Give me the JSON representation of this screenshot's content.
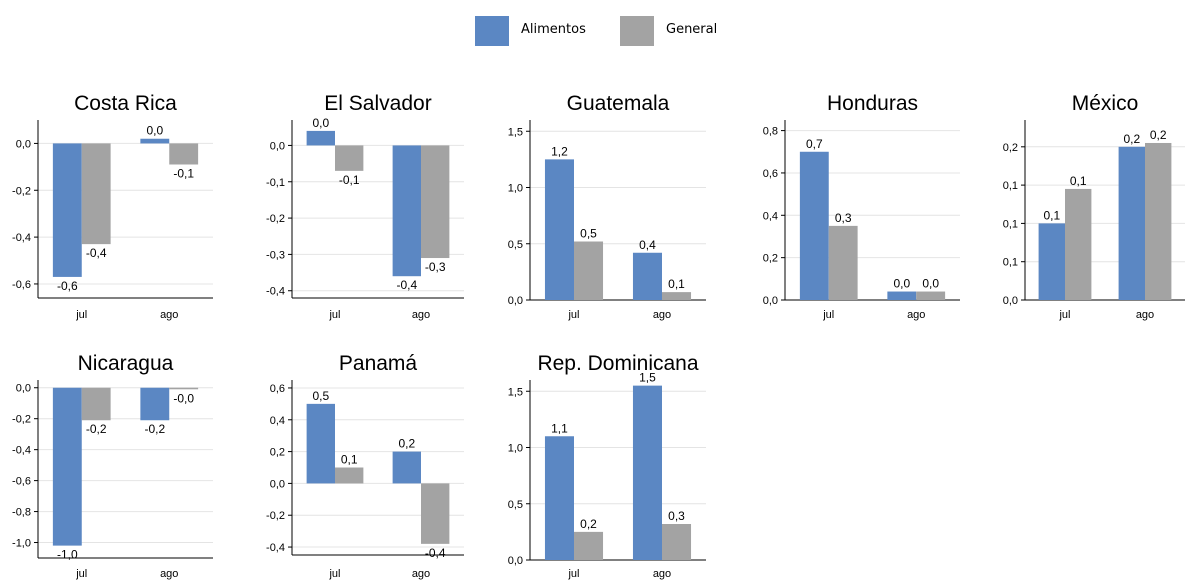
{
  "legend": {
    "items": [
      {
        "label": "Alimentos",
        "color": "#5b87c3"
      },
      {
        "label": "General",
        "color": "#a3a3a3"
      }
    ]
  },
  "chart_data": [
    {
      "type": "bar",
      "title": "Costa Rica",
      "categories": [
        "jul",
        "ago"
      ],
      "series": [
        {
          "name": "Alimentos",
          "values": [
            -0.57,
            0.02
          ],
          "labels": [
            "-0,6",
            "0,0"
          ]
        },
        {
          "name": "General",
          "values": [
            -0.43,
            -0.09
          ],
          "labels": [
            "-0,4",
            "-0,1"
          ]
        }
      ],
      "ylim": [
        -0.66,
        0.1
      ],
      "yticks": [
        0,
        -0.2,
        -0.4,
        -0.6
      ],
      "ytick_labels": [
        "0,0",
        "-0,2",
        "-0,4",
        "-0,6"
      ],
      "grid": true
    },
    {
      "type": "bar",
      "title": "El Salvador",
      "categories": [
        "jul",
        "ago"
      ],
      "series": [
        {
          "name": "Alimentos",
          "values": [
            0.04,
            -0.36
          ],
          "labels": [
            "0,0",
            "-0,4"
          ]
        },
        {
          "name": "General",
          "values": [
            -0.07,
            -0.31
          ],
          "labels": [
            "-0,1",
            "-0,3"
          ]
        }
      ],
      "ylim": [
        -0.42,
        0.07
      ],
      "yticks": [
        0,
        -0.1,
        -0.2,
        -0.3,
        -0.4
      ],
      "ytick_labels": [
        "0,0",
        "-0,1",
        "-0,2",
        "-0,3",
        "-0,4"
      ],
      "grid": true
    },
    {
      "type": "bar",
      "title": "Guatemala",
      "categories": [
        "jul",
        "ago"
      ],
      "series": [
        {
          "name": "Alimentos",
          "values": [
            1.25,
            0.42
          ],
          "labels": [
            "1,2",
            "0,4"
          ]
        },
        {
          "name": "General",
          "values": [
            0.52,
            0.07
          ],
          "labels": [
            "0,5",
            "0,1"
          ]
        }
      ],
      "ylim": [
        0,
        1.6
      ],
      "yticks": [
        0,
        0.5,
        1.0,
        1.5
      ],
      "ytick_labels": [
        "0,0",
        "0,5",
        "1,0",
        "1,5"
      ],
      "grid": true
    },
    {
      "type": "bar",
      "title": "Honduras",
      "categories": [
        "jul",
        "ago"
      ],
      "series": [
        {
          "name": "Alimentos",
          "values": [
            0.7,
            0.04
          ],
          "labels": [
            "0,7",
            "0,0"
          ]
        },
        {
          "name": "General",
          "values": [
            0.35,
            0.04
          ],
          "labels": [
            "0,3",
            "0,0"
          ]
        }
      ],
      "ylim": [
        0,
        0.85
      ],
      "yticks": [
        0,
        0.2,
        0.4,
        0.6,
        0.8
      ],
      "ytick_labels": [
        "0,0",
        "0,2",
        "0,4",
        "0,6",
        "0,8"
      ],
      "grid": true
    },
    {
      "type": "bar",
      "title": "México",
      "categories": [
        "jul",
        "ago"
      ],
      "series": [
        {
          "name": "Alimentos",
          "values": [
            0.1,
            0.2
          ],
          "labels": [
            "0,1",
            "0,2"
          ]
        },
        {
          "name": "General",
          "values": [
            0.145,
            0.205
          ],
          "labels": [
            "0,1",
            "0,2"
          ]
        }
      ],
      "ylim": [
        0,
        0.235
      ],
      "yticks": [
        0,
        0.05,
        0.1,
        0.15,
        0.2
      ],
      "ytick_labels": [
        "0,0",
        "0,1",
        "0,1",
        "0,1",
        "0,2"
      ],
      "grid": true
    },
    {
      "type": "bar",
      "title": "Nicaragua",
      "categories": [
        "jul",
        "ago"
      ],
      "series": [
        {
          "name": "Alimentos",
          "values": [
            -1.02,
            -0.21
          ],
          "labels": [
            "-1,0",
            "-0,2"
          ]
        },
        {
          "name": "General",
          "values": [
            -0.21,
            -0.01
          ],
          "labels": [
            "-0,2",
            "-0,0"
          ]
        }
      ],
      "ylim": [
        -1.1,
        0.05
      ],
      "yticks": [
        0,
        -0.2,
        -0.4,
        -0.6,
        -0.8,
        -1.0
      ],
      "ytick_labels": [
        "0,0",
        "-0,2",
        "-0,4",
        "-0,6",
        "-0,8",
        "-1,0"
      ],
      "grid": true
    },
    {
      "type": "bar",
      "title": "Panamá",
      "categories": [
        "jul",
        "ago"
      ],
      "series": [
        {
          "name": "Alimentos",
          "values": [
            0.5,
            0.2
          ],
          "labels": [
            "0,5",
            "0,2"
          ]
        },
        {
          "name": "General",
          "values": [
            0.1,
            -0.38
          ],
          "labels": [
            "0,1",
            "-0,4"
          ]
        }
      ],
      "ylim": [
        -0.45,
        0.65
      ],
      "yticks": [
        0.6,
        0.4,
        0.2,
        0,
        -0.2,
        -0.4
      ],
      "ytick_labels": [
        "0,6",
        "0,4",
        "0,2",
        "0,0",
        "-0,2",
        "-0,4"
      ],
      "grid": true
    },
    {
      "type": "bar",
      "title": "Rep. Dominicana",
      "categories": [
        "jul",
        "ago"
      ],
      "series": [
        {
          "name": "Alimentos",
          "values": [
            1.1,
            1.55
          ],
          "labels": [
            "1,1",
            "1,5"
          ]
        },
        {
          "name": "General",
          "values": [
            0.25,
            0.32
          ],
          "labels": [
            "0,2",
            "0,3"
          ]
        }
      ],
      "ylim": [
        0,
        1.6
      ],
      "yticks": [
        0,
        0.5,
        1.0,
        1.5
      ],
      "ytick_labels": [
        "0,0",
        "0,5",
        "1,0",
        "1,5"
      ],
      "grid": true
    }
  ]
}
